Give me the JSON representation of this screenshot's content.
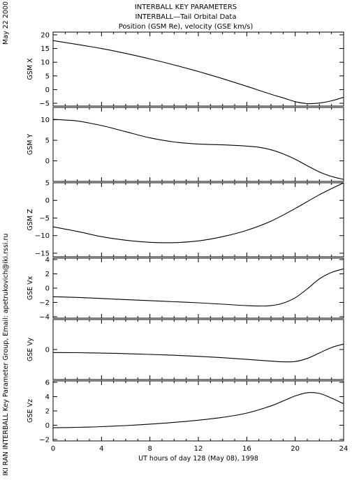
{
  "title_lines": [
    "INTERBALL KEY PARAMETERS",
    "INTERBALL—Tail Orbital Data",
    "Position (GSM Re), velocity (GSE km/s)"
  ],
  "side_date": "May 22 2000",
  "side_credit": "IKI RAN INTERBALL Key Parameter Group, Email: apetrukovich@iki.rssi.ru",
  "colors": {
    "line": "#000000",
    "background": "#ffffff"
  },
  "chart_data": [
    {
      "type": "line",
      "ylabel": "GSM X",
      "xlim": [
        0,
        24
      ],
      "ylim": [
        -6,
        21
      ],
      "yticks": [
        -5,
        0,
        5,
        10,
        15,
        20
      ],
      "x": [
        0,
        2,
        4,
        6,
        8,
        10,
        12,
        14,
        16,
        18,
        19,
        20,
        21,
        22,
        23,
        24
      ],
      "series": [
        {
          "values": [
            17.9,
            16.5,
            15.0,
            13.2,
            11.2,
            9.0,
            6.6,
            4.0,
            1.2,
            -1.7,
            -3.0,
            -4.4,
            -5.1,
            -4.9,
            -4.1,
            -2.8
          ]
        }
      ]
    },
    {
      "type": "line",
      "ylabel": "GSM Y",
      "xlim": [
        0,
        24
      ],
      "ylim": [
        -5,
        13
      ],
      "yticks": [
        0,
        5,
        10
      ],
      "x": [
        0,
        2,
        4,
        6,
        8,
        10,
        12,
        14,
        16,
        17,
        18,
        19,
        20,
        21,
        22,
        23,
        24
      ],
      "series": [
        {
          "values": [
            10.1,
            9.7,
            8.6,
            7.1,
            5.6,
            4.6,
            4.1,
            3.9,
            3.6,
            3.3,
            2.7,
            1.7,
            0.4,
            -1.2,
            -2.7,
            -3.8,
            -4.5
          ]
        }
      ]
    },
    {
      "type": "line",
      "ylabel": "GSM Z",
      "xlim": [
        0,
        24
      ],
      "ylim": [
        -16,
        5
      ],
      "yticks": [
        -15,
        -10,
        -5,
        0,
        5
      ],
      "x": [
        0,
        2,
        4,
        6,
        8,
        10,
        12,
        14,
        16,
        18,
        20,
        22,
        24
      ],
      "series": [
        {
          "values": [
            -7.5,
            -8.8,
            -10.3,
            -11.3,
            -11.9,
            -12.0,
            -11.5,
            -10.3,
            -8.5,
            -5.9,
            -2.3,
            1.6,
            5.0
          ]
        }
      ]
    },
    {
      "type": "line",
      "ylabel": "GSE Vx",
      "xlim": [
        0,
        24
      ],
      "ylim": [
        -4.2,
        4.2
      ],
      "yticks": [
        -4,
        -2,
        0,
        2,
        4
      ],
      "x": [
        0,
        2,
        4,
        6,
        8,
        10,
        12,
        14,
        16,
        17,
        18,
        19,
        20,
        21,
        22,
        23,
        24
      ],
      "series": [
        {
          "values": [
            -1.2,
            -1.3,
            -1.45,
            -1.6,
            -1.75,
            -1.9,
            -2.05,
            -2.25,
            -2.45,
            -2.5,
            -2.45,
            -2.1,
            -1.35,
            -0.1,
            1.3,
            2.2,
            2.7
          ]
        }
      ]
    },
    {
      "type": "line",
      "ylabel": "GSE Vy",
      "xlim": [
        0,
        24
      ],
      "ylim": [
        -2.2,
        2.2
      ],
      "yticks": [
        0
      ],
      "x": [
        0,
        2,
        4,
        6,
        8,
        10,
        12,
        14,
        16,
        18,
        19,
        20,
        21,
        22,
        23,
        24
      ],
      "series": [
        {
          "values": [
            -0.22,
            -0.23,
            -0.26,
            -0.3,
            -0.36,
            -0.42,
            -0.5,
            -0.6,
            -0.72,
            -0.85,
            -0.9,
            -0.88,
            -0.65,
            -0.25,
            0.15,
            0.4
          ]
        }
      ]
    },
    {
      "type": "line",
      "ylabel": "GSE Vz",
      "xlim": [
        0,
        24
      ],
      "ylim": [
        -2.2,
        6.2
      ],
      "yticks": [
        -2,
        0,
        2,
        4,
        6
      ],
      "x": [
        0,
        2,
        4,
        6,
        8,
        10,
        12,
        14,
        16,
        18,
        19,
        20,
        21,
        22,
        23,
        24
      ],
      "series": [
        {
          "values": [
            -0.35,
            -0.3,
            -0.2,
            -0.05,
            0.15,
            0.4,
            0.7,
            1.1,
            1.7,
            2.7,
            3.4,
            4.1,
            4.55,
            4.45,
            3.8,
            3.0
          ]
        }
      ]
    }
  ],
  "x_axis": {
    "label": "UT hours of day 128 (May 08), 1998",
    "ticks": [
      0,
      4,
      8,
      12,
      16,
      20,
      24
    ],
    "tick_labels": [
      "0",
      "4",
      "8",
      "12",
      "16",
      "20",
      "24"
    ]
  }
}
